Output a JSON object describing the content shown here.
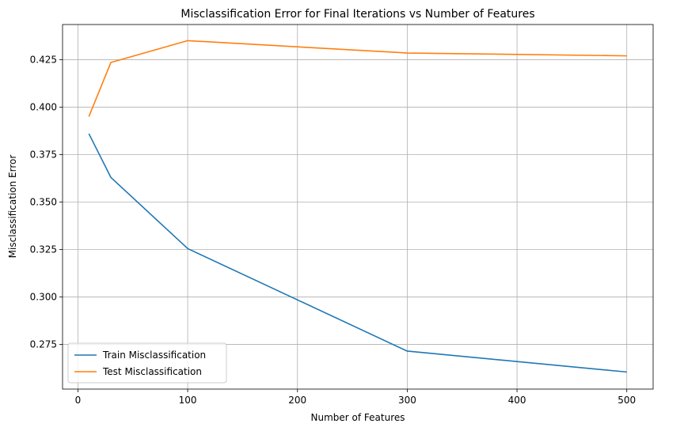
{
  "chart_data": {
    "type": "line",
    "title": "Misclassification Error for Final Iterations vs Number of Features",
    "xlabel": "Number of Features",
    "ylabel": "Misclassification Error",
    "x": [
      10,
      30,
      100,
      300,
      500
    ],
    "xlim": [
      -14,
      524
    ],
    "ylim": [
      0.2515,
      0.4435
    ],
    "xticks": [
      0,
      100,
      200,
      300,
      400,
      500
    ],
    "yticks": [
      0.275,
      0.3,
      0.325,
      0.35,
      0.375,
      0.4,
      0.425
    ],
    "xtick_labels": [
      "0",
      "100",
      "200",
      "300",
      "400",
      "500"
    ],
    "ytick_labels": [
      "0.275",
      "0.300",
      "0.325",
      "0.350",
      "0.375",
      "0.400",
      "0.425"
    ],
    "grid": true,
    "legend": "lower-left",
    "series": [
      {
        "name": "Train Misclassification",
        "color": "#1f77b4",
        "values": [
          0.386,
          0.363,
          0.3255,
          0.2715,
          0.2605
        ]
      },
      {
        "name": "Test Misclassification",
        "color": "#ff7f0e",
        "values": [
          0.395,
          0.4235,
          0.435,
          0.4285,
          0.427
        ]
      }
    ]
  }
}
